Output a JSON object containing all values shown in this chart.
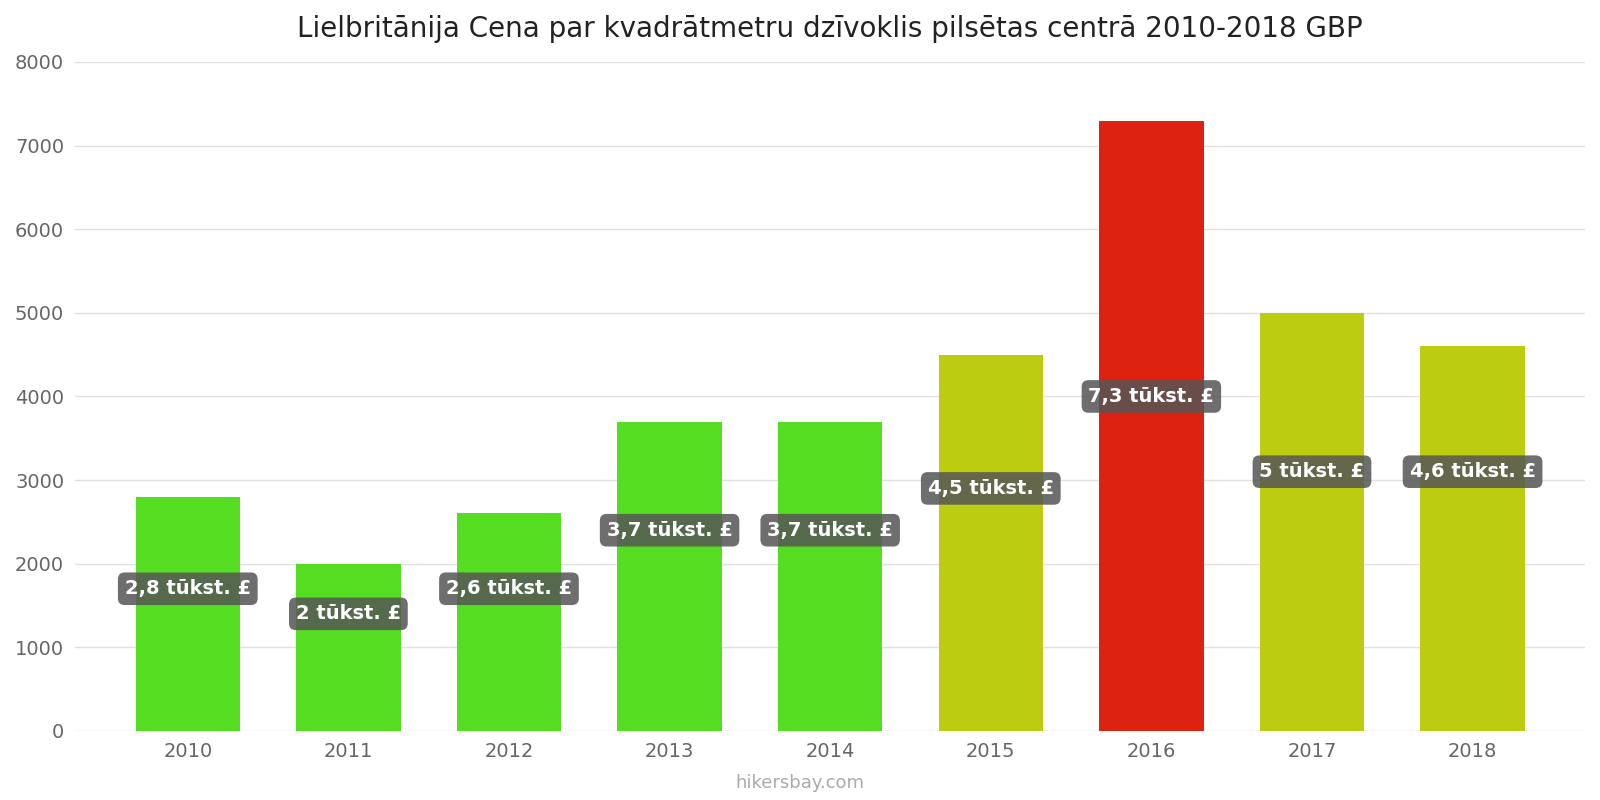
{
  "title": "Lielbritānija Cena par kvadrātmetru dzīvoklis pilsētas centrā 2010-2018 GBP",
  "years": [
    2010,
    2011,
    2012,
    2013,
    2014,
    2015,
    2016,
    2017,
    2018
  ],
  "values": [
    2800,
    2000,
    2600,
    3700,
    3700,
    4500,
    7300,
    5000,
    4600
  ],
  "labels": [
    "2,8 tūkst. £",
    "2 tūkst. £",
    "2,6 tūkst. £",
    "3,7 tūkst. £",
    "3,7 tūkst. £",
    "4,5 tūkst. £",
    "7,3 tūkst. £",
    "5 tūkst. £",
    "4,6 tūkst. £"
  ],
  "bar_colors": [
    "#55dd22",
    "#55dd22",
    "#55dd22",
    "#55dd22",
    "#55dd22",
    "#bbcc11",
    "#dd2211",
    "#bbcc11",
    "#bbcc11"
  ],
  "label_y_positions": [
    1700,
    1400,
    1700,
    2400,
    2400,
    2900,
    4000,
    3100,
    3100
  ],
  "ylim": [
    0,
    8000
  ],
  "yticks": [
    0,
    1000,
    2000,
    3000,
    4000,
    5000,
    6000,
    7000,
    8000
  ],
  "background_color": "#ffffff",
  "grid_color": "#e0e0e0",
  "label_box_color": "#555555",
  "label_text_color": "#ffffff",
  "watermark": "hikersbay.com",
  "title_fontsize": 20,
  "label_fontsize": 14,
  "tick_fontsize": 14,
  "bar_width": 0.65
}
